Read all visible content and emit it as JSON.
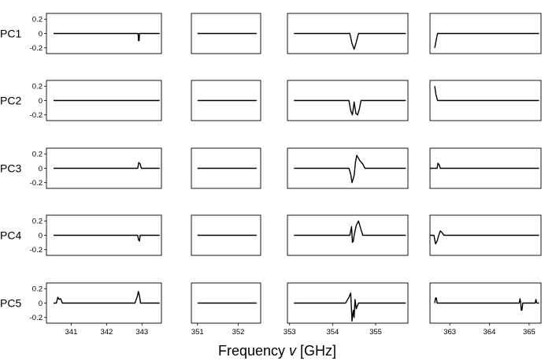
{
  "chart_data": {
    "type": "line",
    "xlabel": "Frequency ν [GHz]",
    "row_labels": [
      "PC1",
      "PC2",
      "PC3",
      "PC4",
      "PC5"
    ],
    "ytick_labels": [
      "0.2",
      "0",
      "-0.2"
    ],
    "yticks": [
      0.2,
      0,
      -0.2
    ],
    "ylim": [
      -0.28,
      0.28
    ],
    "grid": false,
    "panels": [
      {
        "xlim": [
          340.3,
          343.55
        ],
        "xticks": [
          341,
          342,
          343
        ],
        "xtick_labels": [
          "341",
          "342",
          "343"
        ]
      },
      {
        "xlim": [
          350.85,
          352.55
        ],
        "xticks": [
          351,
          352
        ],
        "xtick_labels": [
          "351",
          "352"
        ]
      },
      {
        "xlim": [
          352.95,
          355.75
        ],
        "xticks": [
          353,
          354,
          355
        ],
        "xtick_labels": [
          "353",
          "354",
          "355"
        ]
      },
      {
        "xlim": [
          362.5,
          365.3
        ],
        "xticks": [
          363,
          364,
          365
        ],
        "xtick_labels": [
          "363",
          "364",
          "365"
        ]
      }
    ],
    "series": [
      {
        "row": 0,
        "panel": 0,
        "x": [
          340.5,
          342.89,
          342.9,
          342.92,
          342.93,
          343.5
        ],
        "y": [
          0,
          0,
          -0.1,
          -0.1,
          0,
          0
        ]
      },
      {
        "row": 0,
        "panel": 1,
        "x": [
          351.0,
          352.45
        ],
        "y": [
          0,
          0
        ]
      },
      {
        "row": 0,
        "panel": 2,
        "x": [
          353.1,
          354.4,
          354.45,
          354.5,
          354.55,
          354.6,
          355.7
        ],
        "y": [
          0,
          0,
          -0.14,
          -0.22,
          -0.12,
          0,
          0
        ]
      },
      {
        "row": 0,
        "panel": 3,
        "x": [
          362.62,
          362.66,
          362.69,
          365.25
        ],
        "y": [
          -0.2,
          -0.08,
          0,
          0
        ]
      },
      {
        "row": 1,
        "panel": 0,
        "x": [
          340.5,
          343.5
        ],
        "y": [
          0,
          0
        ]
      },
      {
        "row": 1,
        "panel": 1,
        "x": [
          351.0,
          352.45
        ],
        "y": [
          0,
          0
        ]
      },
      {
        "row": 1,
        "panel": 2,
        "x": [
          353.1,
          354.38,
          354.42,
          354.46,
          354.5,
          354.54,
          354.58,
          354.62,
          354.66,
          355.7
        ],
        "y": [
          0,
          0,
          -0.14,
          -0.2,
          -0.02,
          -0.18,
          -0.2,
          -0.12,
          0,
          0
        ]
      },
      {
        "row": 1,
        "panel": 3,
        "x": [
          362.62,
          362.65,
          362.69,
          365.25
        ],
        "y": [
          0.2,
          0.08,
          0,
          0
        ]
      },
      {
        "row": 2,
        "panel": 0,
        "x": [
          340.5,
          342.88,
          342.91,
          342.95,
          342.98,
          343.5
        ],
        "y": [
          0,
          0,
          0.08,
          0.06,
          0,
          0
        ]
      },
      {
        "row": 2,
        "panel": 1,
        "x": [
          351.0,
          352.45
        ],
        "y": [
          0,
          0
        ]
      },
      {
        "row": 2,
        "panel": 2,
        "x": [
          353.1,
          354.38,
          354.42,
          354.45,
          354.5,
          354.53,
          354.56,
          354.6,
          354.64,
          354.7,
          354.75,
          355.7
        ],
        "y": [
          0,
          0,
          -0.08,
          -0.2,
          -0.1,
          0.08,
          0.18,
          0.14,
          0.1,
          0.06,
          0,
          0
        ]
      },
      {
        "row": 2,
        "panel": 3,
        "x": [
          362.5,
          362.68,
          362.7,
          362.73,
          362.76,
          365.25
        ],
        "y": [
          0,
          0,
          0.07,
          0.05,
          0,
          0
        ]
      },
      {
        "row": 3,
        "panel": 0,
        "x": [
          340.5,
          342.88,
          342.9,
          342.93,
          342.95,
          343.5
        ],
        "y": [
          0,
          0,
          -0.06,
          -0.08,
          0,
          0
        ]
      },
      {
        "row": 3,
        "panel": 1,
        "x": [
          351.0,
          352.45
        ],
        "y": [
          0,
          0
        ]
      },
      {
        "row": 3,
        "panel": 2,
        "x": [
          353.1,
          354.4,
          354.44,
          354.46,
          354.48,
          354.5,
          354.55,
          354.6,
          354.65,
          354.7,
          355.7
        ],
        "y": [
          0,
          0,
          0.12,
          -0.1,
          -0.08,
          0,
          0.14,
          0.2,
          0.1,
          0,
          0
        ]
      },
      {
        "row": 3,
        "panel": 3,
        "x": [
          362.5,
          362.6,
          362.64,
          362.68,
          362.72,
          362.76,
          362.8,
          362.85,
          365.25
        ],
        "y": [
          0,
          0,
          -0.12,
          -0.08,
          0,
          0.06,
          0.04,
          0,
          0
        ]
      },
      {
        "row": 4,
        "panel": 0,
        "x": [
          340.5,
          340.58,
          340.62,
          340.66,
          340.7,
          340.75,
          342.8,
          342.86,
          342.9,
          342.93,
          342.96,
          343.5
        ],
        "y": [
          0,
          0,
          0.08,
          0.05,
          0.06,
          0,
          0,
          0.08,
          0.16,
          0.1,
          0,
          0
        ]
      },
      {
        "row": 4,
        "panel": 1,
        "x": [
          351.0,
          352.45
        ],
        "y": [
          0,
          0
        ]
      },
      {
        "row": 4,
        "panel": 2,
        "x": [
          353.1,
          354.3,
          354.38,
          354.42,
          354.45,
          354.48,
          354.5,
          354.52,
          354.55,
          354.6,
          355.7
        ],
        "y": [
          0,
          0,
          0.08,
          0.14,
          -0.25,
          -0.1,
          -0.2,
          0.05,
          -0.08,
          0,
          0
        ]
      },
      {
        "row": 4,
        "panel": 3,
        "x": [
          362.62,
          362.64,
          362.66,
          362.68,
          364.75,
          364.77,
          364.79,
          364.8,
          364.82,
          364.84,
          365.15,
          365.17,
          365.19,
          365.25
        ],
        "y": [
          0,
          0.07,
          0.07,
          0,
          0,
          0.06,
          0,
          -0.1,
          -0.1,
          0,
          0,
          0.05,
          0,
          0
        ]
      }
    ]
  }
}
